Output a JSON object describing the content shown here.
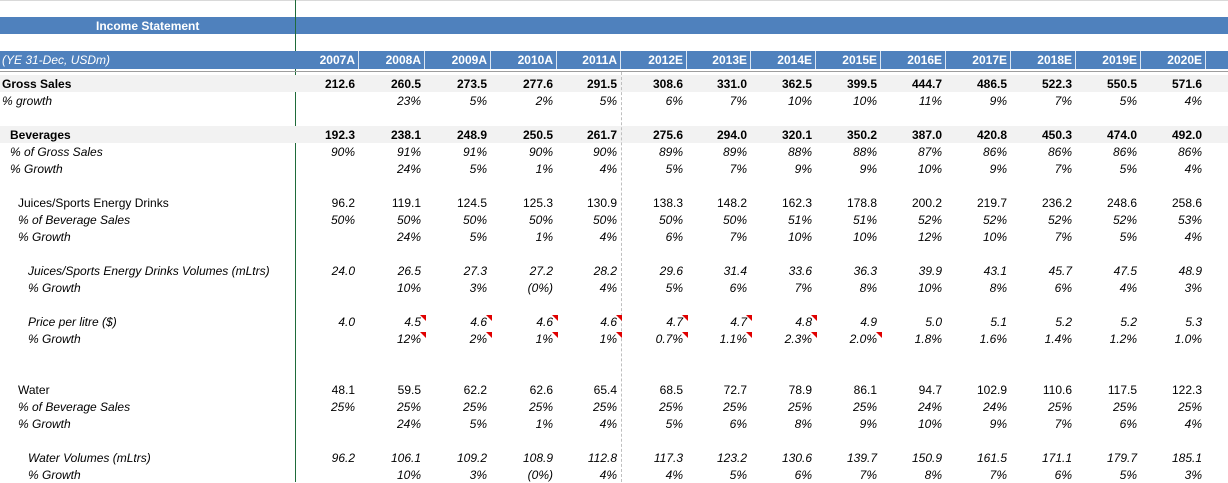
{
  "title": "Income Statement",
  "header_label": "(YE 31-Dec, USDm)",
  "years": [
    "2007A",
    "2008A",
    "2009A",
    "2010A",
    "2011A",
    "2012E",
    "2013E",
    "2014E",
    "2015E",
    "2016E",
    "2017E",
    "2018E",
    "2019E",
    "2020E"
  ],
  "colors": {
    "header_blue": "#4f81bd",
    "comment_marker": "#e00000",
    "band_grey": "#f2f2f2"
  },
  "rows": [
    {
      "label": "Gross Sales",
      "style": "bold",
      "values": [
        "212.6",
        "260.5",
        "273.5",
        "277.6",
        "291.5",
        "308.6",
        "331.0",
        "362.5",
        "399.5",
        "444.7",
        "486.5",
        "522.3",
        "550.5",
        "571.6"
      ]
    },
    {
      "label": "% growth",
      "style": "ital",
      "values": [
        "",
        "23%",
        "5%",
        "2%",
        "5%",
        "6%",
        "7%",
        "10%",
        "10%",
        "11%",
        "9%",
        "7%",
        "5%",
        "4%"
      ]
    },
    {
      "label": "Beverages",
      "style": "bold",
      "values": [
        "192.3",
        "238.1",
        "248.9",
        "250.5",
        "261.7",
        "275.6",
        "294.0",
        "320.1",
        "350.2",
        "387.0",
        "420.8",
        "450.3",
        "474.0",
        "492.0"
      ]
    },
    {
      "label": "% of Gross Sales",
      "style": "ital",
      "values": [
        "90%",
        "91%",
        "91%",
        "90%",
        "90%",
        "89%",
        "89%",
        "88%",
        "88%",
        "87%",
        "86%",
        "86%",
        "86%",
        "86%"
      ]
    },
    {
      "label": "% Growth",
      "style": "ital",
      "values": [
        "",
        "24%",
        "5%",
        "1%",
        "4%",
        "5%",
        "7%",
        "9%",
        "9%",
        "10%",
        "9%",
        "7%",
        "5%",
        "4%"
      ]
    },
    {
      "label": "Juices/Sports Energy Drinks",
      "style": "plain",
      "values": [
        "96.2",
        "119.1",
        "124.5",
        "125.3",
        "130.9",
        "138.3",
        "148.2",
        "162.3",
        "178.8",
        "200.2",
        "219.7",
        "236.2",
        "248.6",
        "258.6"
      ]
    },
    {
      "label": "% of Beverage Sales",
      "style": "ital",
      "values": [
        "50%",
        "50%",
        "50%",
        "50%",
        "50%",
        "50%",
        "50%",
        "51%",
        "51%",
        "52%",
        "52%",
        "52%",
        "52%",
        "53%"
      ]
    },
    {
      "label": "% Growth",
      "style": "ital",
      "values": [
        "",
        "24%",
        "5%",
        "1%",
        "4%",
        "6%",
        "7%",
        "10%",
        "10%",
        "12%",
        "10%",
        "7%",
        "5%",
        "4%"
      ]
    },
    {
      "label": "Juices/Sports Energy Drinks Volumes (mLtrs)",
      "style": "ital",
      "values": [
        "24.0",
        "26.5",
        "27.3",
        "27.2",
        "28.2",
        "29.6",
        "31.4",
        "33.6",
        "36.3",
        "39.9",
        "43.1",
        "45.7",
        "47.5",
        "48.9"
      ]
    },
    {
      "label": "% Growth",
      "style": "ital",
      "values": [
        "",
        "10%",
        "3%",
        "(0%)",
        "4%",
        "5%",
        "6%",
        "7%",
        "8%",
        "10%",
        "8%",
        "6%",
        "4%",
        "3%"
      ]
    },
    {
      "label": "Price per litre ($)",
      "style": "ital",
      "values": [
        "4.0",
        "4.5",
        "4.6",
        "4.6",
        "4.6",
        "4.7",
        "4.7",
        "4.8",
        "4.9",
        "5.0",
        "5.1",
        "5.2",
        "5.2",
        "5.3"
      ]
    },
    {
      "label": "% Growth",
      "style": "ital",
      "values": [
        "",
        "12%",
        "2%",
        "1%",
        "1%",
        "0.7%",
        "1.1%",
        "2.3%",
        "2.0%",
        "1.8%",
        "1.6%",
        "1.4%",
        "1.2%",
        "1.0%"
      ]
    },
    {
      "label": "Water",
      "style": "plain",
      "values": [
        "48.1",
        "59.5",
        "62.2",
        "62.6",
        "65.4",
        "68.5",
        "72.7",
        "78.9",
        "86.1",
        "94.7",
        "102.9",
        "110.6",
        "117.5",
        "122.3"
      ]
    },
    {
      "label": "% of Beverage Sales",
      "style": "ital",
      "values": [
        "25%",
        "25%",
        "25%",
        "25%",
        "25%",
        "25%",
        "25%",
        "25%",
        "25%",
        "24%",
        "24%",
        "25%",
        "25%",
        "25%"
      ]
    },
    {
      "label": "% Growth",
      "style": "ital",
      "values": [
        "",
        "24%",
        "5%",
        "1%",
        "4%",
        "5%",
        "6%",
        "8%",
        "9%",
        "10%",
        "9%",
        "7%",
        "6%",
        "4%"
      ]
    },
    {
      "label": "Water Volumes (mLtrs)",
      "style": "ital",
      "values": [
        "96.2",
        "106.1",
        "109.2",
        "108.9",
        "112.8",
        "117.3",
        "123.2",
        "130.6",
        "139.7",
        "150.9",
        "161.5",
        "171.1",
        "179.7",
        "185.1"
      ]
    },
    {
      "label": "% Growth",
      "style": "ital",
      "values": [
        "",
        "10%",
        "3%",
        "(0%)",
        "4%",
        "4%",
        "5%",
        "6%",
        "7%",
        "8%",
        "7%",
        "6%",
        "5%",
        "3%"
      ]
    }
  ],
  "comment_markers": {
    "row_10": [
      1,
      2,
      3,
      4,
      5,
      6,
      7
    ],
    "row_11": [
      1,
      2,
      3,
      4,
      5,
      6,
      7,
      8
    ]
  }
}
